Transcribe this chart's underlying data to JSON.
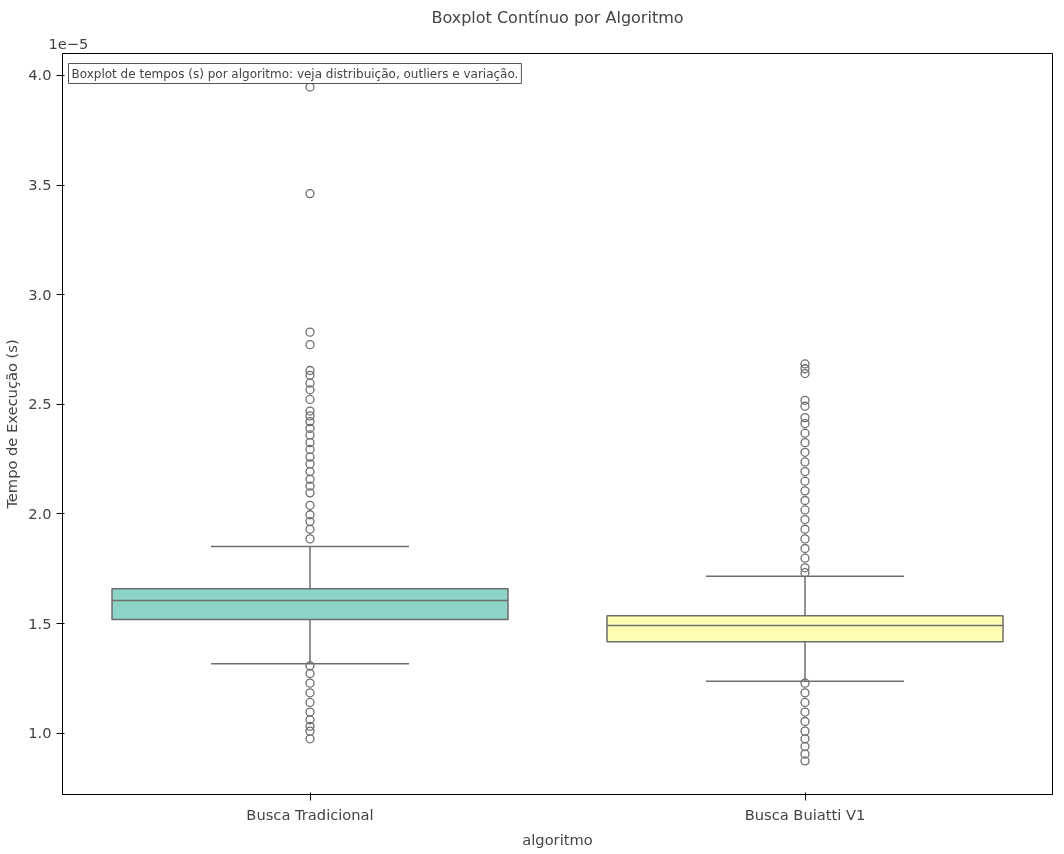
{
  "chart_data": {
    "type": "box",
    "title": "Boxplot Contínuo por Algoritmo",
    "xlabel": "algoritmo",
    "ylabel": "Tempo de Execução (s)",
    "categories": [
      "Busca Tradicional",
      "Busca Buiatti V1"
    ],
    "colors": [
      "#8dd3c7",
      "#ffffb3"
    ],
    "boxes": [
      {
        "low": 1.316,
        "q1": 1.518,
        "median": 1.605,
        "q3": 1.658,
        "high": 1.851,
        "outliers": [
          3.947,
          3.461,
          2.829,
          2.772,
          2.654,
          2.632,
          2.596,
          2.566,
          2.522,
          2.469,
          2.447,
          2.421,
          2.39,
          2.36,
          2.325,
          2.294,
          2.259,
          2.228,
          2.193,
          2.158,
          2.127,
          2.096,
          2.039,
          1.996,
          1.965,
          1.93,
          1.886,
          1.307,
          1.272,
          1.228,
          1.184,
          1.14,
          1.096,
          1.061,
          1.031,
          1.009,
          0.974
        ]
      },
      {
        "low": 1.237,
        "q1": 1.417,
        "median": 1.491,
        "q3": 1.535,
        "high": 1.715,
        "outliers": [
          2.684,
          2.662,
          2.64,
          2.518,
          2.491,
          2.439,
          2.412,
          2.368,
          2.325,
          2.281,
          2.237,
          2.193,
          2.149,
          2.105,
          2.061,
          2.018,
          1.974,
          1.93,
          1.886,
          1.842,
          1.798,
          1.754,
          1.732,
          1.228,
          1.184,
          1.14,
          1.096,
          1.053,
          1.009,
          0.974,
          0.939,
          0.904,
          0.873
        ]
      }
    ],
    "ylim": [
      0.72,
      4.1
    ],
    "yticks": [
      {
        "value": 1.0,
        "label": "1.0"
      },
      {
        "value": 1.5,
        "label": "1.5"
      },
      {
        "value": 2.0,
        "label": "2.0"
      },
      {
        "value": 2.5,
        "label": "2.5"
      },
      {
        "value": 3.0,
        "label": "3.0"
      },
      {
        "value": 3.5,
        "label": "3.5"
      },
      {
        "value": 4.0,
        "label": "4.0"
      }
    ],
    "grid": false,
    "annotations": [
      "1e−5",
      "Boxplot de tempos (s) por algoritmo: veja distribuição, outliers e variação."
    ]
  }
}
